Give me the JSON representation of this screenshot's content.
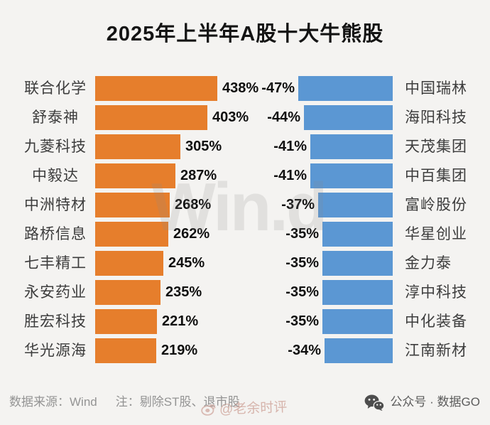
{
  "title": "2025年上半年A股十大牛熊股",
  "chart_data": {
    "type": "bar",
    "orientation": "horizontal",
    "title": "2025年上半年A股十大牛熊股",
    "grid": false,
    "legend": false,
    "value_suffix": "%",
    "gainers": {
      "color": "#E67E2C",
      "items": [
        {
          "name": "联合化学",
          "value": 438,
          "label": "438%"
        },
        {
          "name": "舒泰神",
          "value": 403,
          "label": "403%"
        },
        {
          "name": "九菱科技",
          "value": 305,
          "label": "305%"
        },
        {
          "name": "中毅达",
          "value": 287,
          "label": "287%"
        },
        {
          "name": "中洲特材",
          "value": 268,
          "label": "268%"
        },
        {
          "name": "路桥信息",
          "value": 262,
          "label": "262%"
        },
        {
          "name": "七丰精工",
          "value": 245,
          "label": "245%"
        },
        {
          "name": "永安药业",
          "value": 235,
          "label": "235%"
        },
        {
          "name": "胜宏科技",
          "value": 221,
          "label": "221%"
        },
        {
          "name": "华光源海",
          "value": 219,
          "label": "219%"
        }
      ]
    },
    "losers": {
      "color": "#5B97D3",
      "items": [
        {
          "name": "中国瑞林",
          "value": -47,
          "label": "-47%"
        },
        {
          "name": "海阳科技",
          "value": -44,
          "label": "-44%"
        },
        {
          "name": "天茂集团",
          "value": -41,
          "label": "-41%"
        },
        {
          "name": "中百集团",
          "value": -41,
          "label": "-41%"
        },
        {
          "name": "富岭股份",
          "value": -37,
          "label": "-37%"
        },
        {
          "name": "华星创业",
          "value": -35,
          "label": "-35%"
        },
        {
          "name": "金力泰",
          "value": -35,
          "label": "-35%"
        },
        {
          "name": "淳中科技",
          "value": -35,
          "label": "-35%"
        },
        {
          "name": "中化装备",
          "value": -35,
          "label": "-35%"
        },
        {
          "name": "江南新材",
          "value": -34,
          "label": "-34%"
        }
      ]
    }
  },
  "footer": {
    "source": "数据来源：Wind",
    "note": "注：剔除ST股、退市股",
    "brand": "公众号 · 数据GO"
  },
  "watermarks": {
    "center": "Win.d",
    "bottom": "@老余时评"
  }
}
